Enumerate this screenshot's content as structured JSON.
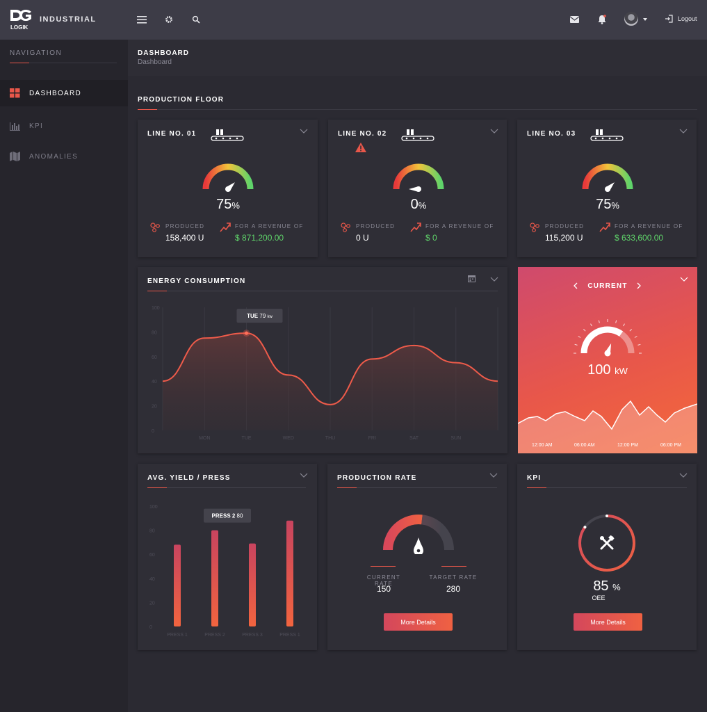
{
  "topbar": {
    "brand": "INDUSTRIAL",
    "logo_text": "LOGIK",
    "logout_label": "Logout",
    "icons": [
      "menu-icon",
      "gear-icon",
      "search-icon",
      "mail-icon",
      "bell-icon",
      "avatar",
      "logout-icon"
    ]
  },
  "sidebar": {
    "title": "NAVIGATION",
    "items": [
      {
        "label": "DASHBOARD",
        "icon": "grid-icon",
        "active": true
      },
      {
        "label": "KPI",
        "icon": "bar-chart-icon",
        "active": false
      },
      {
        "label": "ANOMALIES",
        "icon": "map-icon",
        "active": false
      }
    ]
  },
  "breadcrumb": {
    "title": "DASHBOARD",
    "sub": "Dashboard"
  },
  "section": {
    "title": "PRODUCTION FLOOR"
  },
  "lines": [
    {
      "title": "LINE NO. 01",
      "percent": "75",
      "unit": "%",
      "produced_label": "PRODUCED",
      "produced": "158,400 U",
      "revenue_label": "FOR A REVENUE OF",
      "revenue": "$ 871,200.00",
      "warning": false,
      "level": 0.75
    },
    {
      "title": "LINE NO. 02",
      "percent": "0",
      "unit": "%",
      "produced_label": "PRODUCED",
      "produced": "0 U",
      "revenue_label": "FOR A REVENUE OF",
      "revenue": "$ 0",
      "warning": true,
      "level": 0.0
    },
    {
      "title": "LINE NO. 03",
      "percent": "75",
      "unit": "%",
      "produced_label": "PRODUCED",
      "produced": "115,200 U",
      "revenue_label": "FOR A REVENUE OF",
      "revenue": "$ 633,600.00",
      "warning": false,
      "level": 0.75
    }
  ],
  "energy": {
    "title": "ENERGY CONSUMPTION",
    "tooltip_day": "TUE",
    "tooltip_value": "79",
    "tooltip_unit": "kw"
  },
  "current": {
    "title": "CURRENT",
    "value": "100",
    "unit": "kW",
    "times": [
      "12:00 AM",
      "06:00 AM",
      "12:00 PM",
      "06:00 PM"
    ]
  },
  "yield": {
    "title": "AVG. YIELD / PRESS",
    "tooltip_label": "PRESS 2",
    "tooltip_value": "80"
  },
  "rate": {
    "title": "PRODUCTION RATE",
    "current_label": "CURRENT RATE",
    "current_value": "150",
    "target_label": "TARGET RATE",
    "target_value": "280",
    "button": "More Details",
    "level": 0.536
  },
  "kpi": {
    "title": "KPI",
    "value": "85",
    "unit": "%",
    "sub": "OEE",
    "button": "More Details",
    "level": 0.85
  },
  "colors": {
    "accent": "#e8574a",
    "green": "#5fd36a",
    "bg": "#2b2a32",
    "card": "#2f2e36",
    "topbar": "#3d3c47"
  },
  "chart_data": [
    {
      "type": "area",
      "title": "ENERGY CONSUMPTION",
      "categories": [
        "MON",
        "TUE",
        "WED",
        "THU",
        "FRI",
        "SAT",
        "SUN"
      ],
      "y_ticks": [
        "0",
        "20",
        "40",
        "60",
        "80",
        "100"
      ],
      "ylim": [
        0,
        100
      ],
      "series": [
        {
          "values": [
            75,
            79,
            45,
            21,
            58,
            69,
            55
          ]
        }
      ],
      "grid": true
    },
    {
      "type": "bar",
      "title": "AVG. YIELD / PRESS",
      "categories": [
        "PRESS 1",
        "PRESS 2",
        "PRESS 3",
        "PRESS 1"
      ],
      "values": [
        68,
        80,
        69,
        88
      ],
      "y_ticks": [
        "0",
        "20",
        "40",
        "60",
        "80",
        "100"
      ],
      "ylim": [
        0,
        100
      ]
    }
  ]
}
